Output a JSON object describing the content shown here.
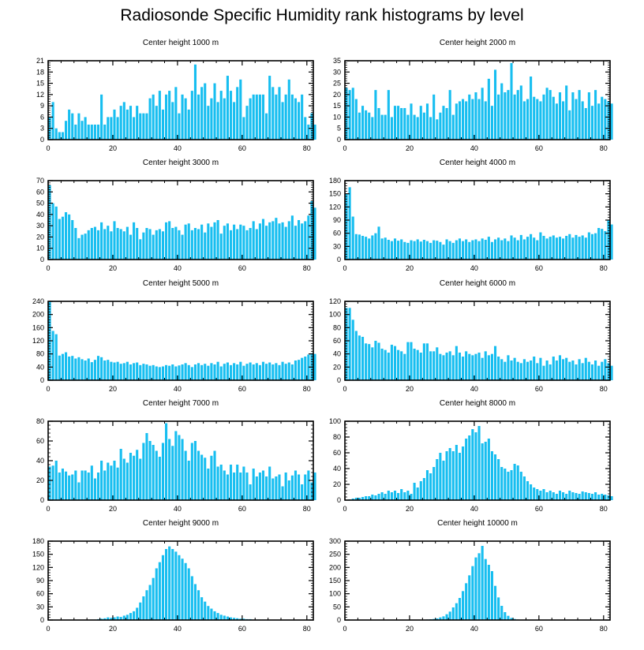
{
  "figure": {
    "title": "Radiosonde Specific Humidity rank histograms by level",
    "bar_color": "#17bef0"
  },
  "chart_data": [
    {
      "type": "bar",
      "title": "Center height 1000 m",
      "xlim": [
        0,
        82
      ],
      "ylim": [
        0,
        21
      ],
      "xticks": [
        0,
        20,
        40,
        60,
        80
      ],
      "yticks": [
        0,
        3,
        6,
        9,
        12,
        15,
        18,
        21
      ],
      "values": [
        6,
        10,
        3,
        2,
        2,
        5,
        8,
        7,
        4,
        7,
        5,
        6,
        4,
        4,
        4,
        4,
        12,
        4,
        6,
        6,
        8,
        6,
        9,
        10,
        8,
        9,
        6,
        9,
        7,
        7,
        7,
        11,
        12,
        9,
        13,
        8,
        12,
        13,
        10,
        14,
        7,
        12,
        11,
        8,
        13,
        20,
        12,
        14,
        15,
        9,
        11,
        15,
        10,
        13,
        11,
        17,
        13,
        10,
        14,
        16,
        6,
        9,
        11,
        12,
        12,
        12,
        12,
        7,
        17,
        14,
        12,
        14,
        10,
        12,
        16,
        12,
        11,
        10,
        12,
        6,
        4,
        7,
        4
      ]
    },
    {
      "type": "bar",
      "title": "Center height 2000 m",
      "xlim": [
        0,
        82
      ],
      "ylim": [
        0,
        35
      ],
      "xticks": [
        0,
        20,
        40,
        60,
        80
      ],
      "yticks": [
        0,
        5,
        10,
        15,
        20,
        25,
        30,
        35
      ],
      "values": [
        23,
        22,
        23,
        18,
        12,
        15,
        13,
        12,
        10,
        22,
        14,
        11,
        11,
        22,
        10,
        15,
        15,
        14,
        14,
        11,
        16,
        11,
        10,
        15,
        12,
        16,
        10,
        20,
        9,
        12,
        15,
        14,
        22,
        11,
        16,
        17,
        18,
        17,
        20,
        18,
        21,
        18,
        23,
        17,
        27,
        15,
        31,
        20,
        25,
        21,
        22,
        34,
        20,
        22,
        24,
        17,
        18,
        28,
        19,
        18,
        17,
        20,
        23,
        22,
        19,
        16,
        21,
        17,
        24,
        13,
        21,
        18,
        22,
        17,
        14,
        21,
        15,
        22,
        16,
        19,
        18,
        17,
        16
      ]
    },
    {
      "type": "bar",
      "title": "Center height 3000 m",
      "xlim": [
        0,
        82
      ],
      "ylim": [
        0,
        70
      ],
      "xticks": [
        0,
        20,
        40,
        60,
        80
      ],
      "yticks": [
        0,
        10,
        20,
        30,
        40,
        50,
        60,
        70
      ],
      "values": [
        66,
        50,
        47,
        36,
        38,
        42,
        40,
        35,
        28,
        19,
        22,
        23,
        26,
        28,
        29,
        26,
        33,
        27,
        30,
        25,
        34,
        28,
        27,
        25,
        29,
        22,
        33,
        28,
        18,
        24,
        28,
        27,
        22,
        26,
        27,
        25,
        33,
        34,
        28,
        29,
        26,
        22,
        31,
        32,
        26,
        28,
        27,
        31,
        24,
        32,
        29,
        33,
        35,
        23,
        30,
        32,
        26,
        31,
        27,
        31,
        30,
        26,
        28,
        34,
        27,
        32,
        36,
        30,
        33,
        34,
        37,
        32,
        33,
        29,
        34,
        39,
        30,
        35,
        32,
        34,
        39,
        52,
        46
      ]
    },
    {
      "type": "bar",
      "title": "Center height 4000 m",
      "xlim": [
        0,
        82
      ],
      "ylim": [
        0,
        180
      ],
      "xticks": [
        0,
        20,
        40,
        60,
        80
      ],
      "yticks": [
        0,
        30,
        60,
        90,
        120,
        150,
        180
      ],
      "values": [
        150,
        165,
        98,
        58,
        57,
        54,
        52,
        48,
        55,
        60,
        75,
        48,
        50,
        45,
        42,
        48,
        43,
        46,
        40,
        38,
        44,
        42,
        46,
        41,
        45,
        42,
        38,
        44,
        43,
        40,
        34,
        46,
        42,
        38,
        44,
        48,
        42,
        46,
        40,
        44,
        46,
        42,
        48,
        45,
        52,
        40,
        46,
        50,
        44,
        48,
        42,
        55,
        50,
        44,
        56,
        46,
        52,
        58,
        50,
        44,
        62,
        54,
        48,
        52,
        55,
        50,
        52,
        48,
        54,
        58,
        50,
        56,
        52,
        55,
        50,
        62,
        58,
        60,
        72,
        70,
        65,
        90,
        80
      ]
    },
    {
      "type": "bar",
      "title": "Center height 5000 m",
      "xlim": [
        0,
        82
      ],
      "ylim": [
        0,
        240
      ],
      "xticks": [
        0,
        20,
        40,
        60,
        80
      ],
      "yticks": [
        0,
        40,
        80,
        120,
        160,
        200,
        240
      ],
      "values": [
        240,
        150,
        140,
        75,
        80,
        85,
        72,
        74,
        66,
        70,
        64,
        60,
        66,
        55,
        62,
        74,
        70,
        60,
        62,
        56,
        54,
        56,
        50,
        52,
        56,
        48,
        52,
        54,
        46,
        50,
        48,
        44,
        46,
        42,
        40,
        42,
        46,
        44,
        48,
        42,
        45,
        48,
        52,
        46,
        40,
        48,
        52,
        46,
        50,
        44,
        52,
        48,
        56,
        42,
        50,
        54,
        46,
        52,
        48,
        56,
        44,
        50,
        54,
        48,
        52,
        46,
        56,
        50,
        54,
        48,
        52,
        46,
        56,
        50,
        54,
        48,
        60,
        62,
        68,
        72,
        78,
        82,
        80
      ]
    },
    {
      "type": "bar",
      "title": "Center height 6000 m",
      "xlim": [
        0,
        82
      ],
      "ylim": [
        0,
        120
      ],
      "xticks": [
        0,
        20,
        40,
        60,
        80
      ],
      "yticks": [
        0,
        20,
        40,
        60,
        80,
        100,
        120
      ],
      "values": [
        110,
        110,
        92,
        75,
        68,
        66,
        56,
        55,
        50,
        60,
        57,
        48,
        46,
        42,
        54,
        52,
        46,
        44,
        40,
        58,
        58,
        48,
        46,
        42,
        56,
        56,
        44,
        44,
        50,
        40,
        38,
        42,
        44,
        38,
        52,
        42,
        36,
        44,
        40,
        38,
        40,
        42,
        34,
        44,
        38,
        40,
        52,
        36,
        32,
        28,
        38,
        30,
        34,
        28,
        26,
        32,
        28,
        30,
        36,
        26,
        34,
        22,
        30,
        24,
        36,
        30,
        38,
        32,
        34,
        28,
        30,
        24,
        32,
        26,
        34,
        28,
        24,
        30,
        22,
        28,
        32,
        26,
        22
      ]
    },
    {
      "type": "bar",
      "title": "Center height 7000 m",
      "xlim": [
        0,
        82
      ],
      "ylim": [
        0,
        80
      ],
      "xticks": [
        0,
        20,
        40,
        60,
        80
      ],
      "yticks": [
        0,
        20,
        40,
        60,
        80
      ],
      "values": [
        34,
        35,
        40,
        28,
        32,
        29,
        25,
        26,
        30,
        18,
        30,
        30,
        28,
        35,
        22,
        28,
        40,
        30,
        38,
        35,
        40,
        33,
        52,
        42,
        38,
        48,
        45,
        51,
        42,
        58,
        68,
        60,
        56,
        50,
        44,
        58,
        78,
        62,
        55,
        70,
        66,
        62,
        50,
        40,
        58,
        60,
        50,
        46,
        43,
        32,
        45,
        50,
        34,
        36,
        30,
        26,
        36,
        28,
        36,
        28,
        34,
        28,
        16,
        32,
        24,
        28,
        30,
        24,
        34,
        22,
        24,
        26,
        14,
        28,
        20,
        25,
        30,
        26,
        16,
        26,
        30,
        18,
        28
      ]
    },
    {
      "type": "bar",
      "title": "Center height 8000 m",
      "xlim": [
        0,
        82
      ],
      "ylim": [
        0,
        100
      ],
      "xticks": [
        0,
        20,
        40,
        60,
        80
      ],
      "yticks": [
        0,
        20,
        40,
        60,
        80,
        100
      ],
      "values": [
        0,
        1,
        2,
        3,
        3,
        4,
        5,
        5,
        7,
        6,
        8,
        10,
        8,
        12,
        10,
        12,
        9,
        14,
        10,
        12,
        8,
        22,
        16,
        24,
        28,
        38,
        34,
        42,
        52,
        60,
        50,
        62,
        66,
        62,
        70,
        60,
        68,
        78,
        82,
        90,
        86,
        94,
        72,
        74,
        78,
        62,
        58,
        52,
        42,
        40,
        36,
        38,
        46,
        44,
        36,
        30,
        24,
        20,
        16,
        14,
        12,
        14,
        10,
        12,
        10,
        8,
        12,
        10,
        8,
        12,
        10,
        9,
        8,
        11,
        10,
        9,
        8,
        10,
        7,
        8,
        7,
        6,
        5
      ]
    },
    {
      "type": "bar",
      "title": "Center height 9000 m",
      "xlim": [
        0,
        82
      ],
      "ylim": [
        0,
        180
      ],
      "xticks": [
        0,
        20,
        40,
        60,
        80
      ],
      "yticks": [
        0,
        30,
        60,
        90,
        120,
        150,
        180
      ],
      "values": [
        0,
        0,
        0,
        0,
        0,
        0,
        0,
        0,
        0,
        0,
        0,
        0,
        0,
        1,
        1,
        2,
        3,
        4,
        6,
        5,
        6,
        8,
        7,
        10,
        12,
        16,
        20,
        28,
        40,
        54,
        68,
        80,
        96,
        118,
        132,
        148,
        162,
        168,
        162,
        156,
        148,
        140,
        130,
        118,
        100,
        82,
        68,
        52,
        42,
        32,
        26,
        20,
        16,
        12,
        10,
        8,
        6,
        5,
        4,
        3,
        3,
        2,
        2,
        1,
        1,
        1,
        1,
        0,
        0,
        0,
        0,
        0,
        0,
        0,
        0,
        0,
        0,
        0,
        0,
        0,
        0,
        0,
        0
      ]
    },
    {
      "type": "bar",
      "title": "Center height 10000 m",
      "xlim": [
        0,
        82
      ],
      "ylim": [
        0,
        300
      ],
      "xticks": [
        0,
        20,
        40,
        60,
        80
      ],
      "yticks": [
        0,
        50,
        100,
        150,
        200,
        250,
        300
      ],
      "values": [
        0,
        0,
        0,
        0,
        0,
        0,
        0,
        0,
        0,
        0,
        0,
        0,
        0,
        0,
        0,
        0,
        0,
        0,
        0,
        0,
        0,
        0,
        0,
        0,
        1,
        2,
        3,
        4,
        6,
        10,
        14,
        22,
        32,
        48,
        64,
        84,
        110,
        140,
        170,
        205,
        238,
        254,
        282,
        232,
        210,
        186,
        130,
        86,
        54,
        30,
        16,
        8,
        4,
        2,
        1,
        1,
        0,
        0,
        0,
        0,
        0,
        0,
        0,
        0,
        0,
        0,
        0,
        0,
        0,
        0,
        0,
        0,
        0,
        0,
        0,
        0,
        0,
        0,
        0,
        0,
        0,
        0,
        0
      ]
    }
  ]
}
